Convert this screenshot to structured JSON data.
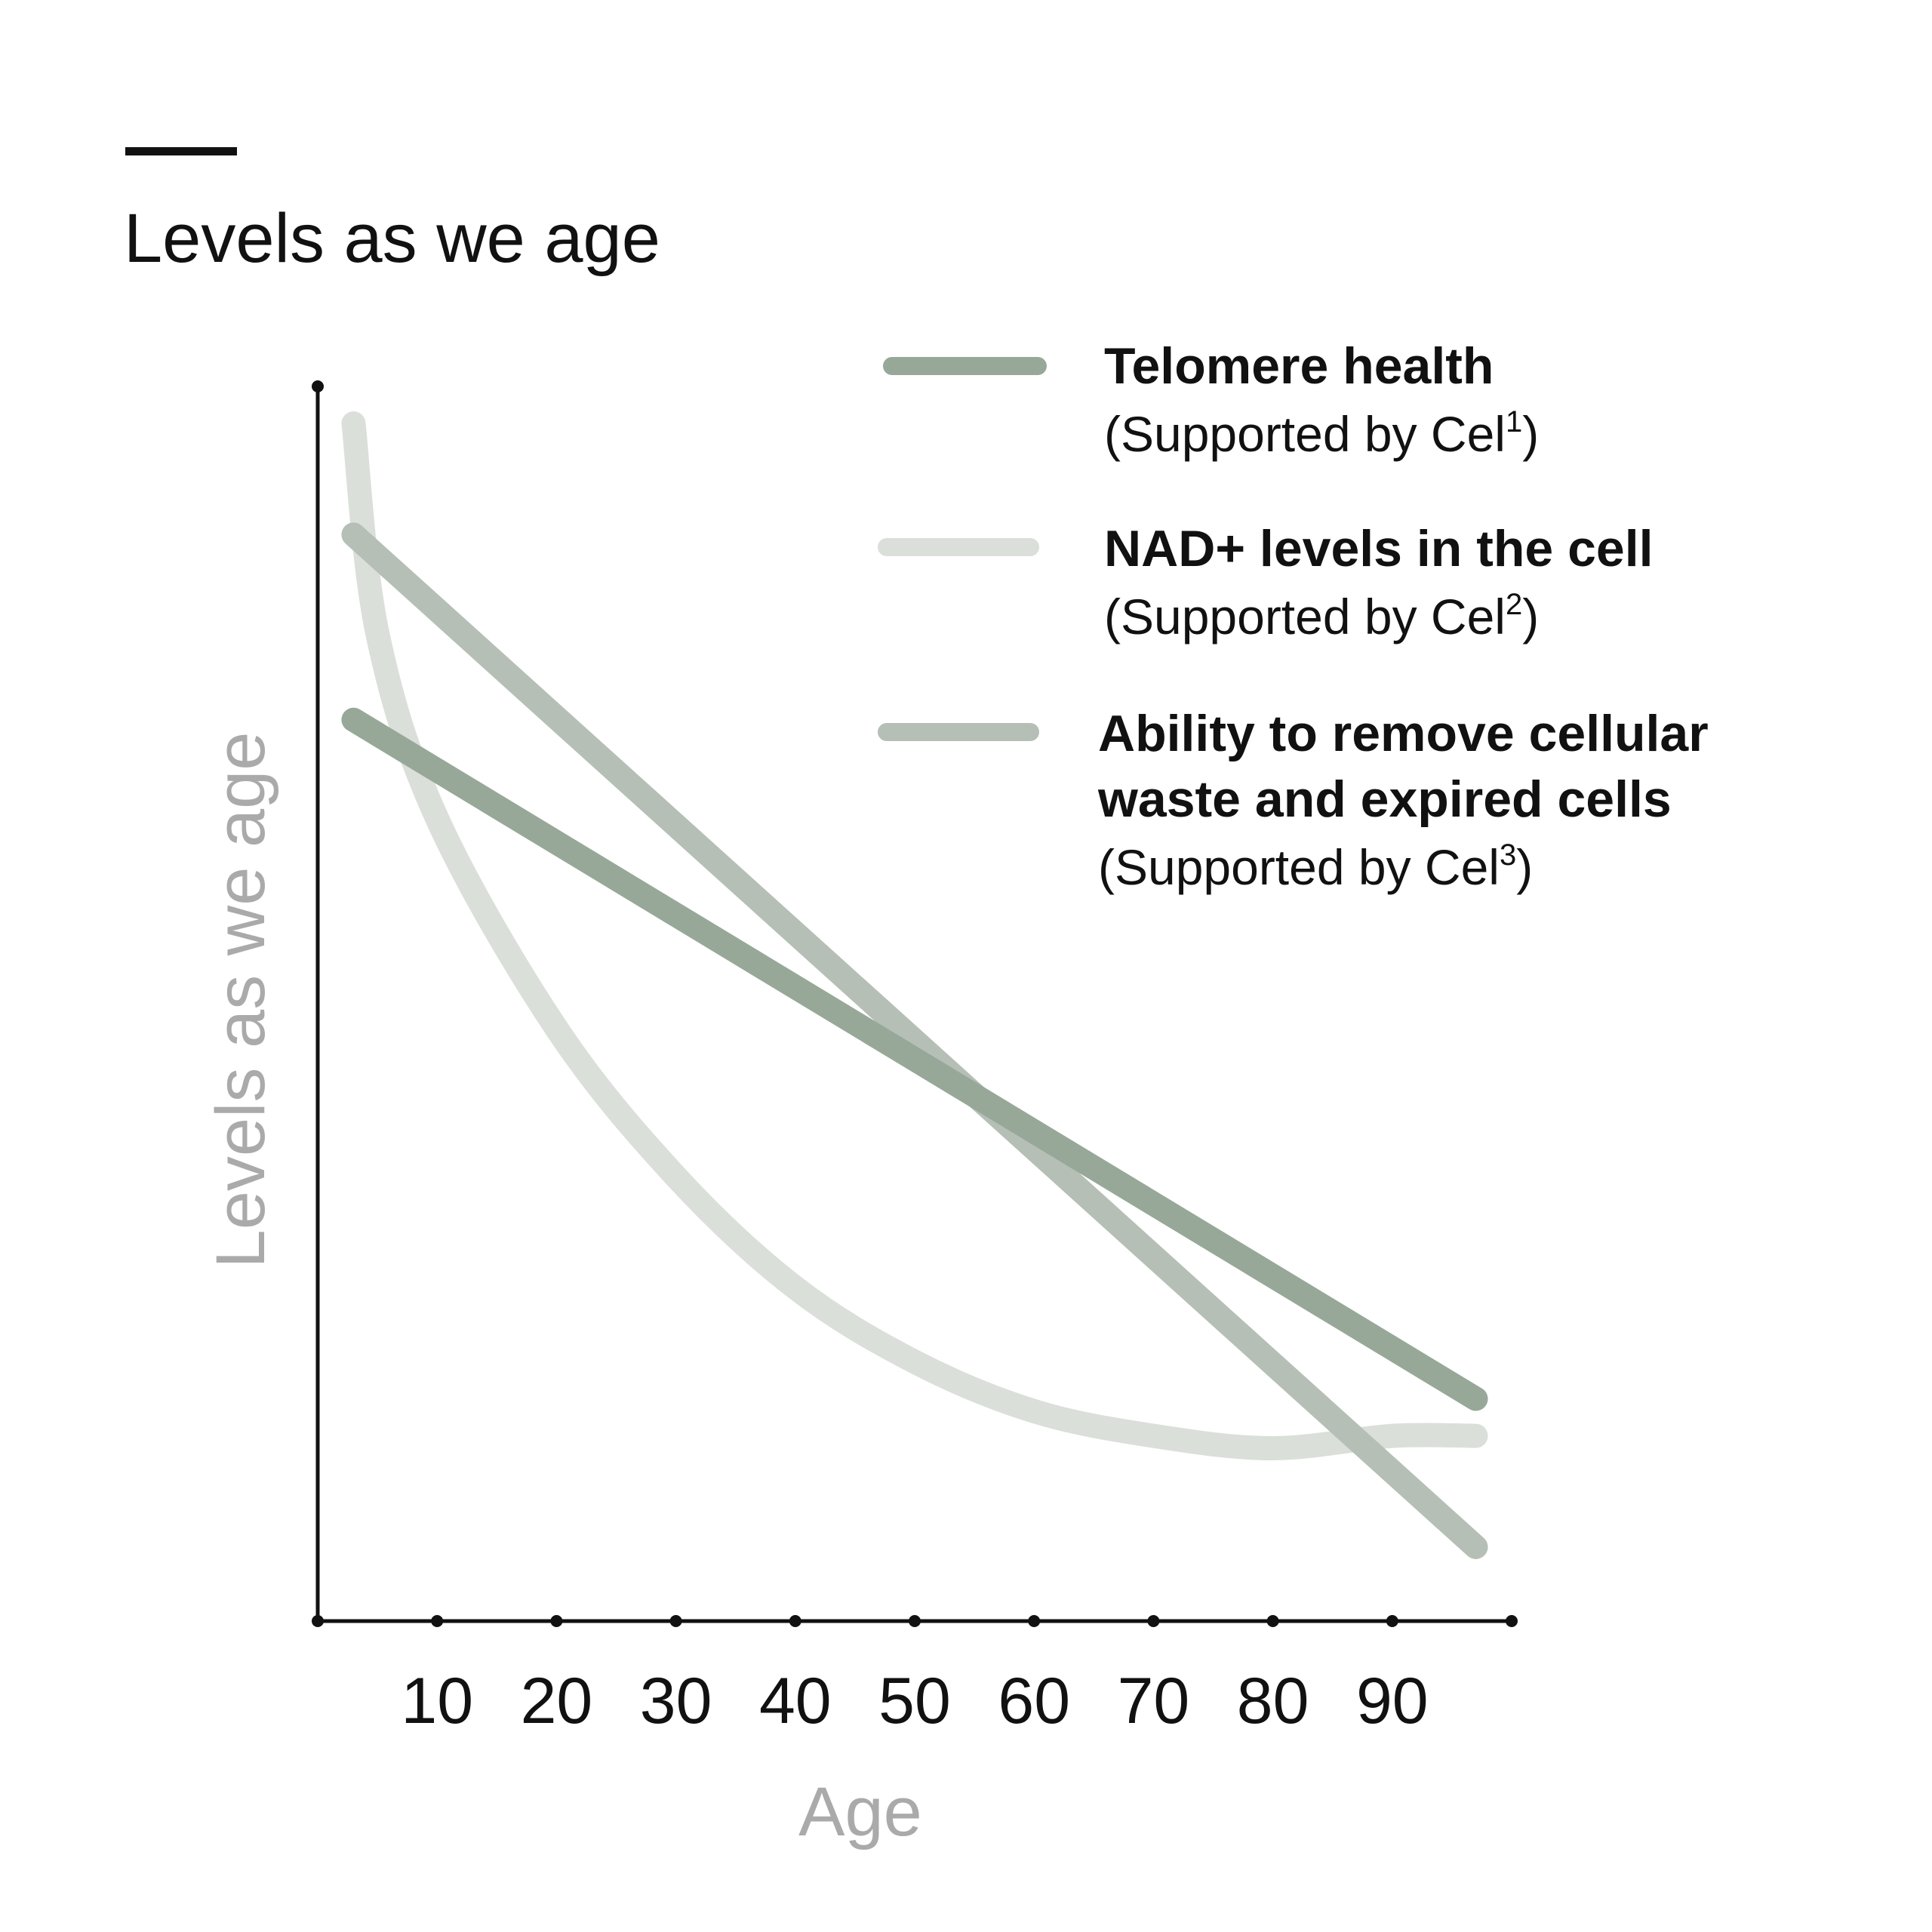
{
  "chart_data": {
    "type": "line",
    "title": "Levels as we age",
    "xlabel": "Age",
    "ylabel": "Levels as we age",
    "xlim": [
      0,
      100
    ],
    "ylim": [
      0,
      100
    ],
    "x_ticks": [
      "10",
      "20",
      "30",
      "40",
      "50",
      "60",
      "70",
      "80",
      "90"
    ],
    "grid": false,
    "legend_position": "top-right",
    "series": [
      {
        "name": "Telomere health",
        "note": "(Supported by Cel",
        "ref": "1",
        "note_close": ")",
        "color": "#97a898",
        "x": [
          3,
          97
        ],
        "y": [
          73,
          18
        ]
      },
      {
        "name": "NAD+ levels in the cell",
        "note": "(Supported by Cel",
        "ref": "2",
        "note_close": ")",
        "color": "#dadfd9",
        "x": [
          3,
          5,
          10,
          20,
          30,
          40,
          50,
          60,
          70,
          80,
          90,
          97
        ],
        "y": [
          97,
          80,
          65,
          48,
          36,
          27,
          21,
          17,
          15,
          14,
          15,
          15
        ]
      },
      {
        "name": "Ability to remove cellular waste and expired cells",
        "name_lines": [
          "Ability to remove cellular",
          "waste and expired cells"
        ],
        "note": "(Supported by Cel",
        "ref": "3",
        "note_close": ")",
        "color": "#b5bfb6",
        "x": [
          3,
          97
        ],
        "y": [
          88,
          6
        ]
      }
    ]
  }
}
